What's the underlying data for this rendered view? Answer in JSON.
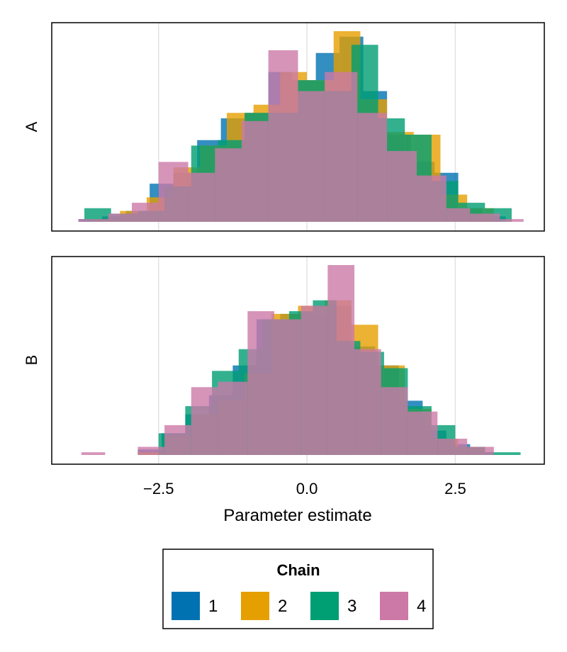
{
  "chart_data": {
    "type": "histogram",
    "xlabel": "Parameter estimate",
    "xlim": [
      -4.3,
      4.0
    ],
    "x_ticks": [
      -2.5,
      0.0,
      2.5
    ],
    "x_tick_labels": [
      "−2.5",
      "0.0",
      "2.5"
    ],
    "grid": "vertical",
    "legend": {
      "title": "Chain",
      "placement": "bottom",
      "entries": [
        "1",
        "2",
        "3",
        "4"
      ]
    },
    "colors": {
      "1": "#0072b2",
      "2": "#e69f00",
      "3": "#009e73",
      "4": "#cc79a7"
    },
    "bar_opacity": 0.8,
    "panels": [
      {
        "label": "A",
        "ymax": 70,
        "series": [
          {
            "chain": "1",
            "bins": [
              [
                -3.85,
                -3.45,
                1
              ],
              [
                -3.45,
                -3.05,
                2
              ],
              [
                -3.05,
                -2.65,
                4
              ],
              [
                -2.65,
                -2.25,
                14
              ],
              [
                -2.25,
                -1.85,
                18
              ],
              [
                -1.85,
                -1.45,
                30
              ],
              [
                -1.45,
                -1.05,
                38
              ],
              [
                -1.05,
                -0.65,
                40
              ],
              [
                -0.65,
                -0.25,
                55
              ],
              [
                -0.25,
                0.15,
                52
              ],
              [
                0.15,
                0.55,
                62
              ],
              [
                0.55,
                0.95,
                68
              ],
              [
                0.95,
                1.35,
                48
              ],
              [
                1.35,
                1.75,
                32
              ],
              [
                1.75,
                2.15,
                22
              ],
              [
                2.15,
                2.55,
                18
              ],
              [
                2.55,
                2.95,
                5
              ],
              [
                2.95,
                3.35,
                2
              ]
            ]
          },
          {
            "chain": "2",
            "bins": [
              [
                -3.6,
                -3.15,
                1
              ],
              [
                -3.15,
                -2.7,
                4
              ],
              [
                -2.7,
                -2.25,
                9
              ],
              [
                -2.25,
                -1.8,
                20
              ],
              [
                -1.8,
                -1.35,
                28
              ],
              [
                -1.35,
                -0.9,
                40
              ],
              [
                -0.9,
                -0.45,
                43
              ],
              [
                -0.45,
                0.0,
                55
              ],
              [
                0.0,
                0.45,
                52
              ],
              [
                0.45,
                0.9,
                70
              ],
              [
                0.9,
                1.35,
                45
              ],
              [
                1.35,
                1.8,
                33
              ],
              [
                1.8,
                2.25,
                32
              ],
              [
                2.25,
                2.7,
                10
              ],
              [
                2.7,
                3.15,
                5
              ]
            ]
          },
          {
            "chain": "3",
            "bins": [
              [
                -3.75,
                -3.3,
                5
              ],
              [
                -3.3,
                -2.85,
                3
              ],
              [
                -2.85,
                -2.4,
                4
              ],
              [
                -2.4,
                -1.95,
                13
              ],
              [
                -1.95,
                -1.5,
                28
              ],
              [
                -1.5,
                -1.05,
                30
              ],
              [
                -1.05,
                -0.6,
                40
              ],
              [
                -0.6,
                -0.15,
                40
              ],
              [
                -0.15,
                0.3,
                52
              ],
              [
                0.3,
                0.75,
                48
              ],
              [
                0.75,
                1.2,
                65
              ],
              [
                1.2,
                1.65,
                38
              ],
              [
                1.65,
                2.1,
                32
              ],
              [
                2.1,
                2.55,
                15
              ],
              [
                2.55,
                3.0,
                7
              ],
              [
                3.0,
                3.45,
                5
              ]
            ]
          },
          {
            "chain": "4",
            "bins": [
              [
                -3.85,
                -3.35,
                1
              ],
              [
                -3.35,
                -2.95,
                3
              ],
              [
                -2.95,
                -2.5,
                7
              ],
              [
                -2.5,
                -2.0,
                22
              ],
              [
                -2.0,
                -1.55,
                18
              ],
              [
                -1.55,
                -1.1,
                27
              ],
              [
                -1.1,
                -0.65,
                37
              ],
              [
                -0.65,
                -0.15,
                63
              ],
              [
                -0.15,
                0.3,
                48
              ],
              [
                0.3,
                0.85,
                55
              ],
              [
                0.85,
                1.35,
                40
              ],
              [
                1.35,
                1.85,
                26
              ],
              [
                1.85,
                2.35,
                17
              ],
              [
                2.35,
                2.75,
                5
              ],
              [
                2.75,
                3.25,
                3
              ],
              [
                3.25,
                3.65,
                1
              ]
            ]
          }
        ]
      },
      {
        "label": "B",
        "ymax": 70,
        "series": [
          {
            "chain": "1",
            "bins": [
              [
                -2.85,
                -2.45,
                2
              ],
              [
                -2.45,
                -2.05,
                8
              ],
              [
                -2.05,
                -1.65,
                15
              ],
              [
                -1.65,
                -1.25,
                22
              ],
              [
                -1.25,
                -0.85,
                33
              ],
              [
                -0.85,
                -0.45,
                50
              ],
              [
                -0.45,
                -0.05,
                52
              ],
              [
                -0.05,
                0.35,
                52
              ],
              [
                0.35,
                0.75,
                55
              ],
              [
                0.75,
                1.15,
                40
              ],
              [
                1.15,
                1.55,
                33
              ],
              [
                1.55,
                1.95,
                20
              ],
              [
                1.95,
                2.35,
                9
              ],
              [
                2.35,
                2.75,
                4
              ],
              [
                2.75,
                3.15,
                1
              ]
            ]
          },
          {
            "chain": "2",
            "bins": [
              [
                -2.85,
                -2.4,
                1
              ],
              [
                -2.4,
                -1.95,
                7
              ],
              [
                -1.95,
                -1.5,
                15
              ],
              [
                -1.5,
                -1.05,
                20
              ],
              [
                -1.05,
                -0.6,
                30
              ],
              [
                -0.6,
                -0.15,
                52
              ],
              [
                -0.15,
                0.3,
                55
              ],
              [
                0.3,
                0.75,
                57
              ],
              [
                0.75,
                1.2,
                48
              ],
              [
                1.2,
                1.65,
                33
              ],
              [
                1.65,
                2.1,
                17
              ],
              [
                2.1,
                2.55,
                6
              ],
              [
                2.55,
                3.0,
                3
              ]
            ]
          },
          {
            "chain": "3",
            "bins": [
              [
                -2.5,
                -2.05,
                8
              ],
              [
                -2.05,
                -1.6,
                18
              ],
              [
                -1.6,
                -1.15,
                31
              ],
              [
                -1.15,
                -0.75,
                39
              ],
              [
                -0.75,
                -0.3,
                50
              ],
              [
                -0.3,
                0.1,
                53
              ],
              [
                0.1,
                0.5,
                57
              ],
              [
                0.5,
                0.9,
                42
              ],
              [
                0.9,
                1.3,
                38
              ],
              [
                1.3,
                1.7,
                32
              ],
              [
                1.7,
                2.1,
                18
              ],
              [
                2.1,
                2.5,
                11
              ],
              [
                2.5,
                3.0,
                3
              ],
              [
                3.0,
                3.6,
                1
              ]
            ]
          },
          {
            "chain": "4",
            "bins": [
              [
                -3.8,
                -3.4,
                1
              ],
              [
                -2.85,
                -2.4,
                3
              ],
              [
                -2.4,
                -1.95,
                11
              ],
              [
                -1.95,
                -1.5,
                25
              ],
              [
                -1.5,
                -1.0,
                27
              ],
              [
                -1.0,
                -0.55,
                53
              ],
              [
                -0.55,
                -0.1,
                50
              ],
              [
                -0.1,
                0.35,
                55
              ],
              [
                0.35,
                0.8,
                70
              ],
              [
                0.8,
                1.25,
                39
              ],
              [
                1.25,
                1.7,
                25
              ],
              [
                1.7,
                2.2,
                16
              ],
              [
                2.2,
                2.7,
                6
              ],
              [
                2.7,
                3.15,
                3
              ]
            ]
          }
        ]
      }
    ]
  }
}
